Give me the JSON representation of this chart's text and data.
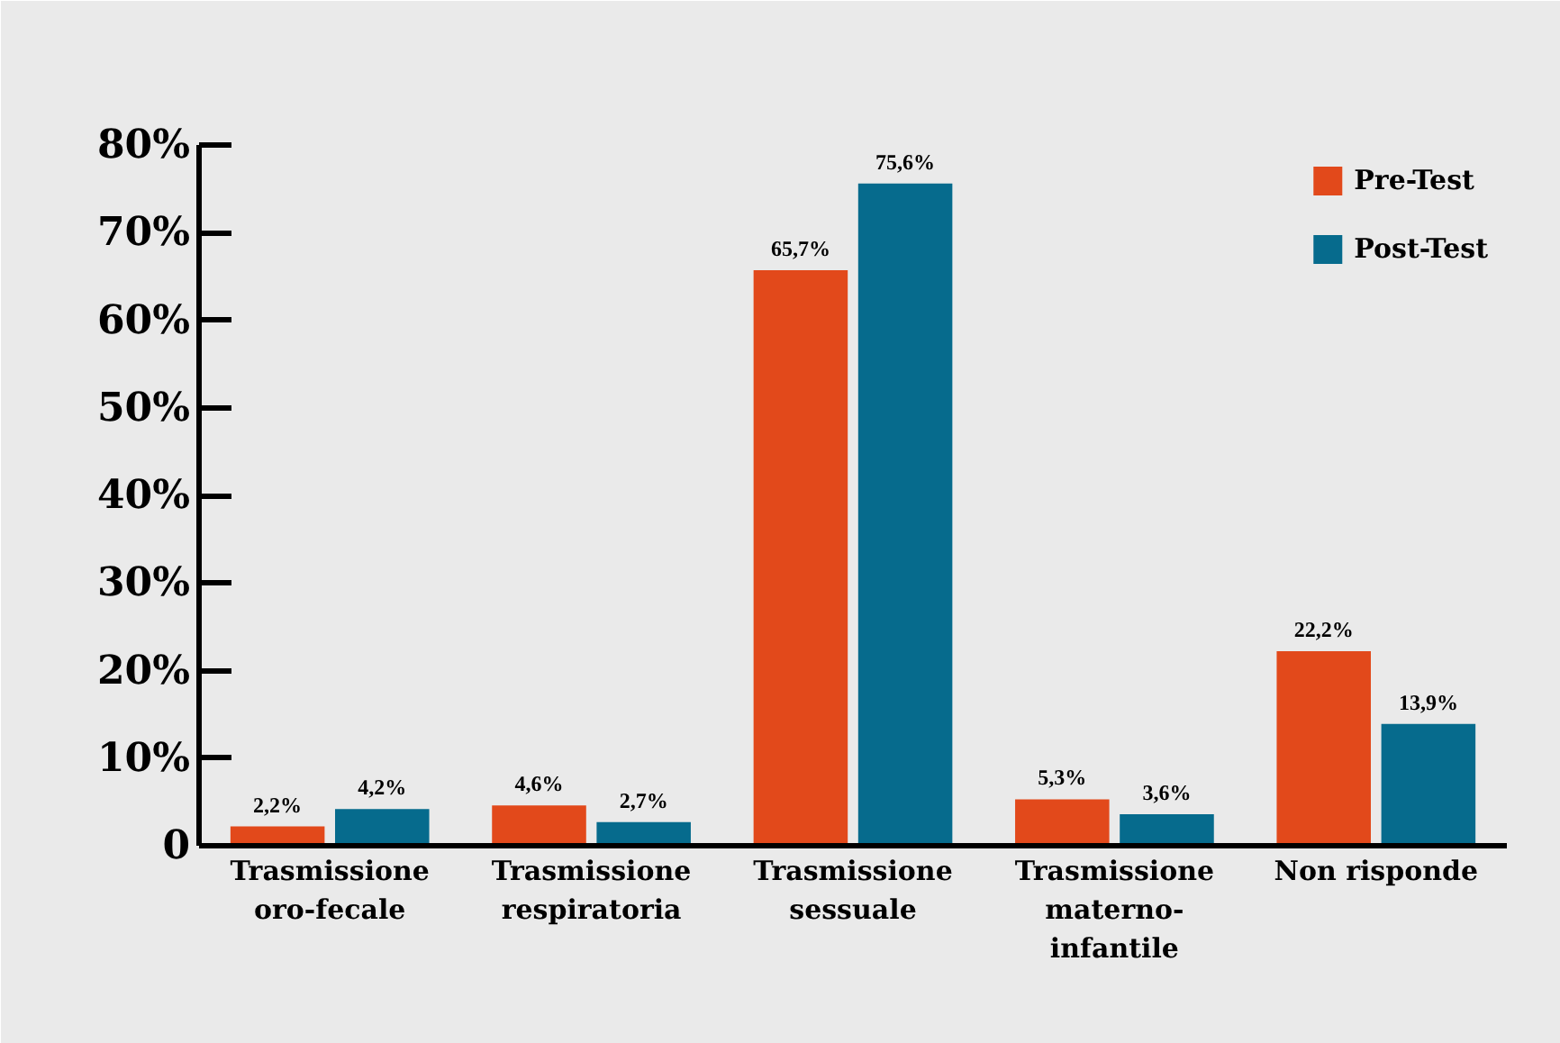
{
  "chart_data": {
    "type": "bar",
    "categories": [
      "Trasmissione\noro-fecale",
      "Trasmissione\nrespiratoria",
      "Trasmissione\nsessuale",
      "Trasmissione\nmaterno-\ninfantile",
      "Non risponde"
    ],
    "series": [
      {
        "name": "Pre-Test",
        "color": "#e2491b",
        "values": [
          2.2,
          4.6,
          65.7,
          5.3,
          22.2
        ],
        "value_labels": [
          "2,2%",
          "4,6%",
          "65,7%",
          "5,3%",
          "22,2%"
        ]
      },
      {
        "name": "Post-Test",
        "color": "#066b8d",
        "values": [
          4.2,
          2.7,
          75.6,
          3.6,
          13.9
        ],
        "value_labels": [
          "4,2%",
          "2,7%",
          "75,6%",
          "3,6%",
          "13,9%"
        ]
      }
    ],
    "ylim": [
      0,
      80
    ],
    "yticks": [
      {
        "value": 0,
        "label": "0"
      },
      {
        "value": 10,
        "label": "10%"
      },
      {
        "value": 20,
        "label": "20%"
      },
      {
        "value": 30,
        "label": "30%"
      },
      {
        "value": 40,
        "label": "40%"
      },
      {
        "value": 50,
        "label": "50%"
      },
      {
        "value": 60,
        "label": "60%"
      },
      {
        "value": 70,
        "label": "70%"
      },
      {
        "value": 80,
        "label": "80%"
      }
    ],
    "legend": "top right"
  }
}
